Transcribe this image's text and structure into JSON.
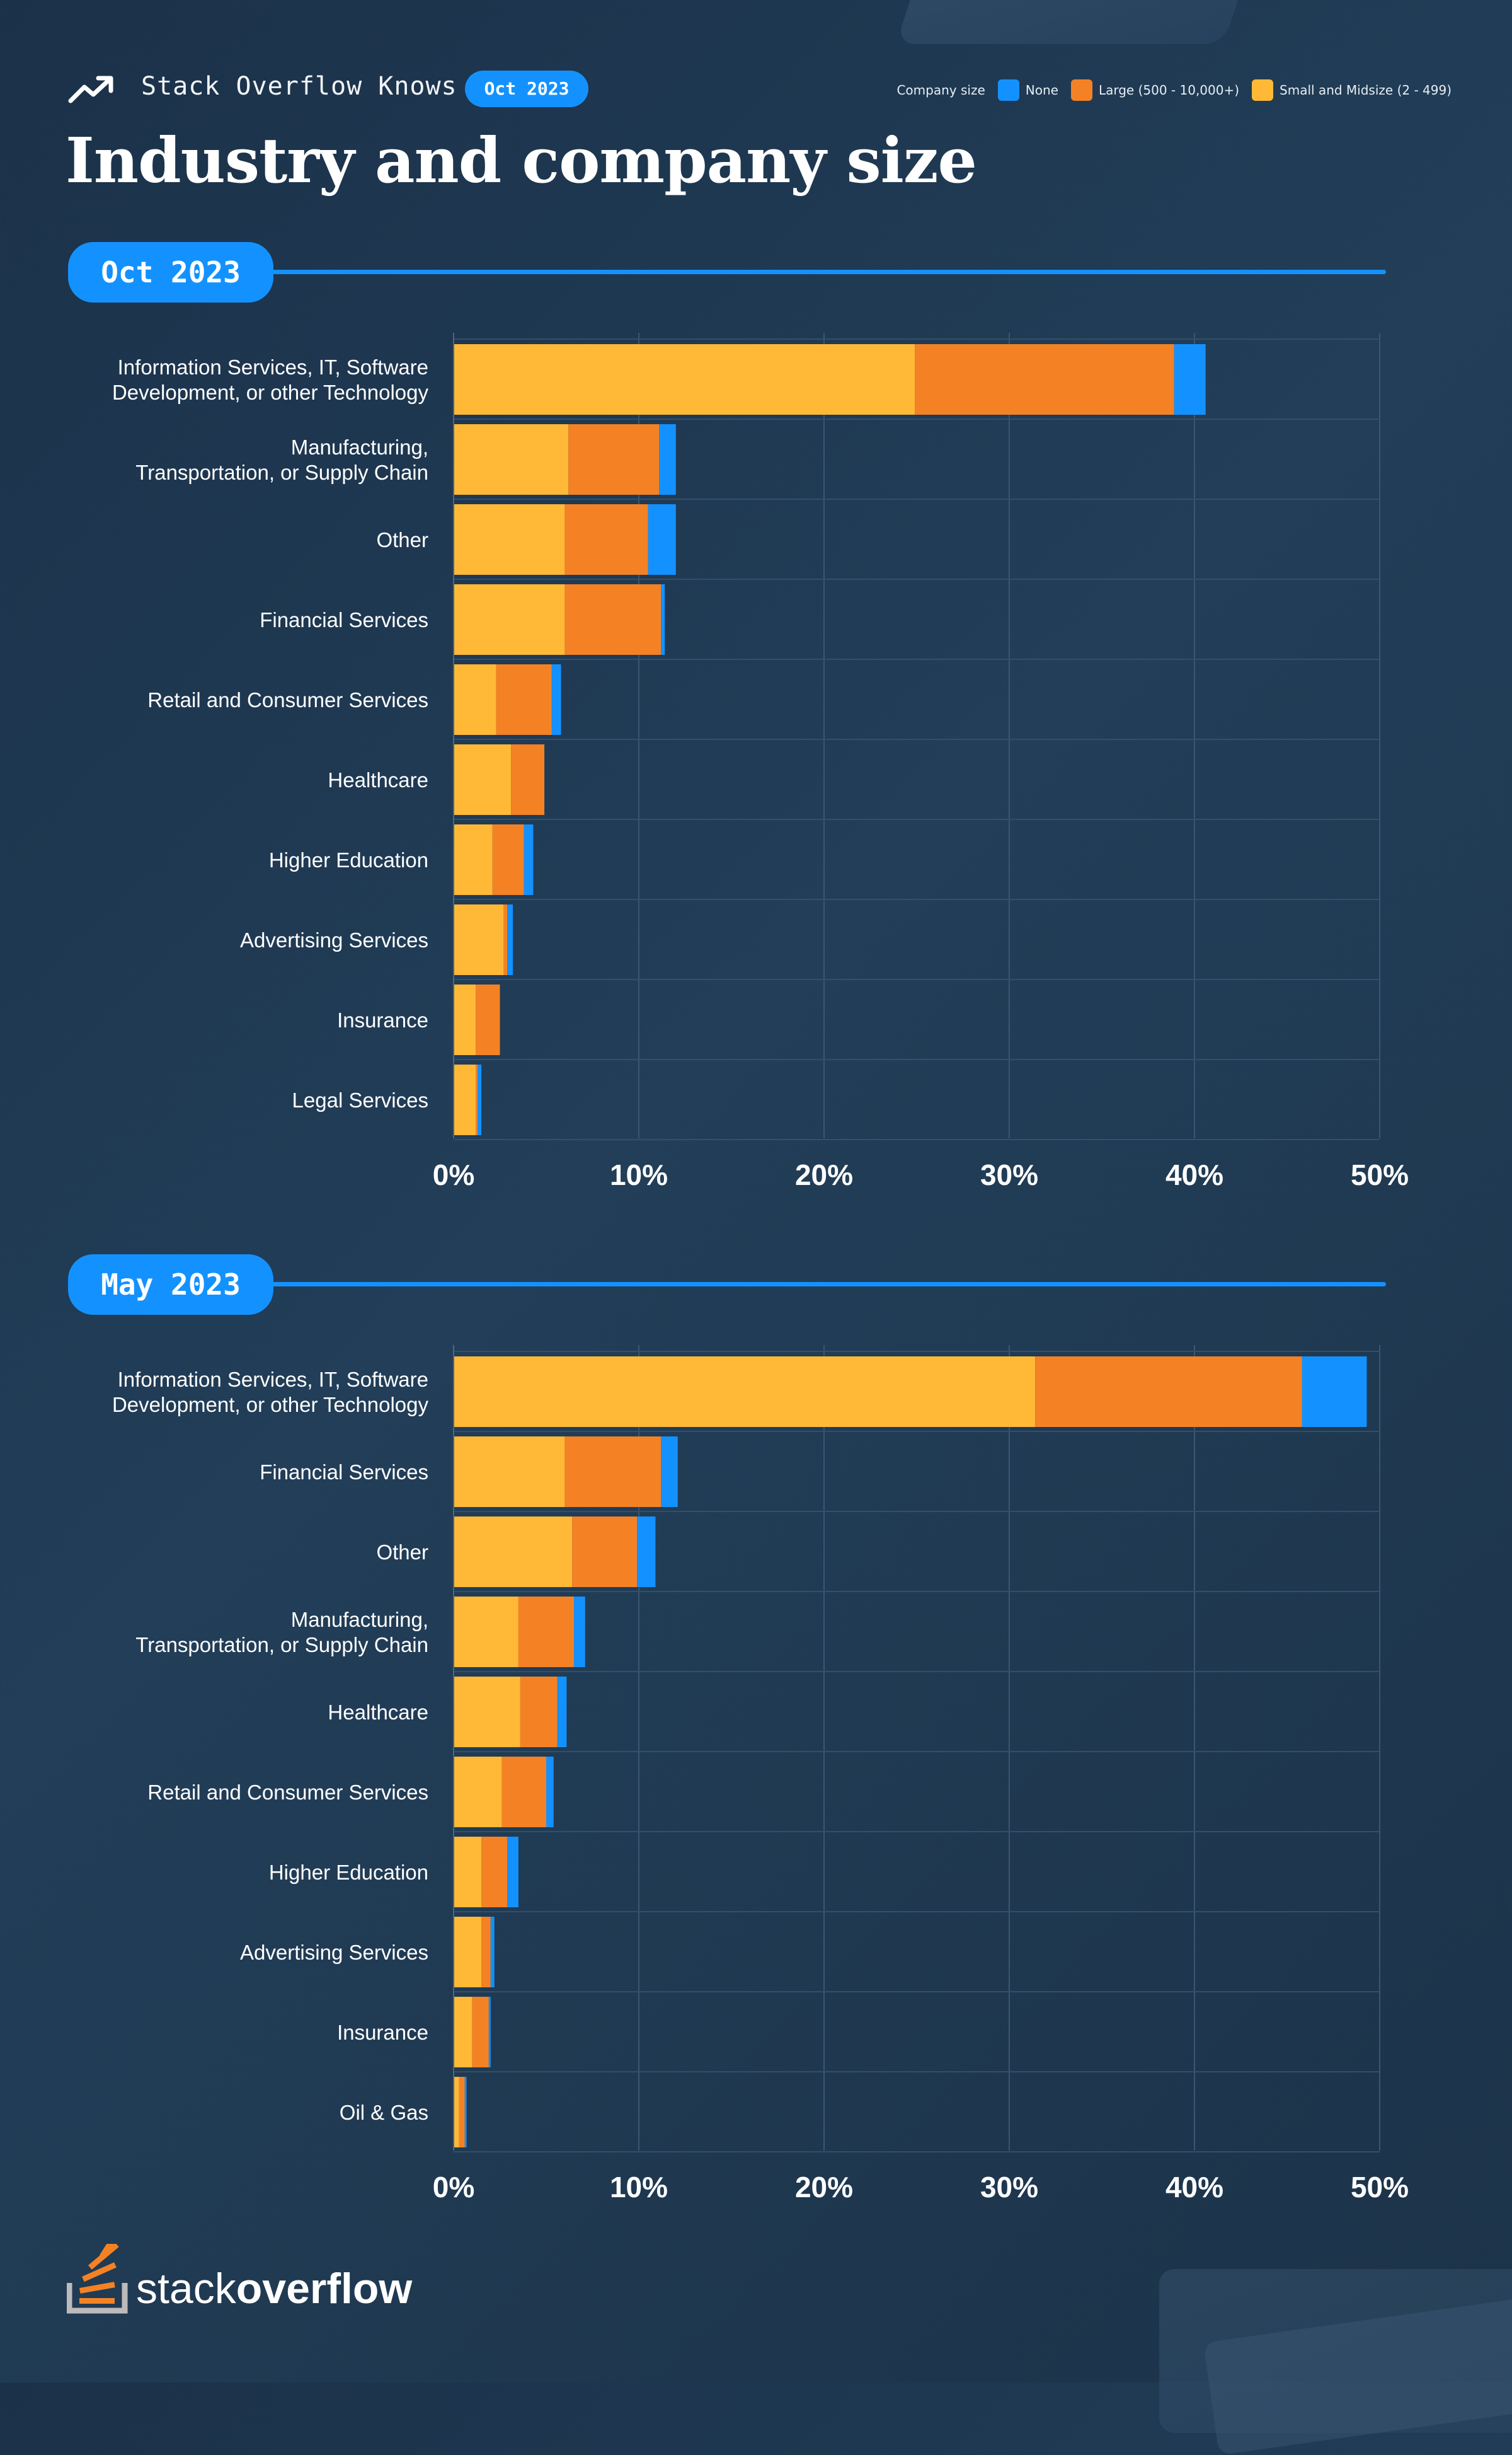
{
  "header": {
    "brand": "Stack Overflow Knows",
    "badge": "Oct 2023",
    "title": "Industry and company size"
  },
  "legend": {
    "title": "Company size",
    "items": [
      {
        "label": "None",
        "color": "#1392ff"
      },
      {
        "label": "Large (500 - 10,000+)",
        "color": "#f48225"
      },
      {
        "label": "Small and Midsize (2 - 499)",
        "color": "#ffb936"
      }
    ]
  },
  "footer": {
    "logo_light": "stack",
    "logo_bold": "overflow"
  },
  "chart_data": [
    {
      "type": "bar",
      "orientation": "horizontal",
      "stacked": true,
      "title": "Oct 2023",
      "xlim": [
        0,
        50
      ],
      "x_unit": "%",
      "x_ticks": [
        "0%",
        "10%",
        "20%",
        "30%",
        "40%",
        "50%"
      ],
      "grid": true,
      "categories": [
        [
          "Information Services, IT, Software",
          "Development, or other Technology"
        ],
        [
          "Manufacturing,",
          "Transportation, or Supply Chain"
        ],
        [
          "Other"
        ],
        [
          "Financial Services"
        ],
        [
          "Retail and Consumer Services"
        ],
        [
          "Healthcare"
        ],
        [
          "Higher Education"
        ],
        [
          "Advertising Services"
        ],
        [
          "Insurance"
        ],
        [
          "Legal Services"
        ]
      ],
      "series": [
        {
          "name": "Small and Midsize (2 - 499)",
          "color": "#ffb936",
          "values": [
            24.9,
            6.2,
            6.0,
            6.0,
            2.3,
            3.1,
            2.1,
            2.7,
            1.2,
            1.2
          ]
        },
        {
          "name": "Large (500 - 10,000+)",
          "color": "#f48225",
          "values": [
            14.0,
            4.9,
            4.5,
            5.2,
            3.0,
            1.8,
            1.7,
            0.2,
            1.3,
            0.1
          ]
        },
        {
          "name": "None",
          "color": "#1392ff",
          "values": [
            1.7,
            0.9,
            1.5,
            0.2,
            0.5,
            0.0,
            0.5,
            0.3,
            0.0,
            0.2
          ]
        }
      ]
    },
    {
      "type": "bar",
      "orientation": "horizontal",
      "stacked": true,
      "title": "May 2023",
      "xlim": [
        0,
        50
      ],
      "x_unit": "%",
      "x_ticks": [
        "0%",
        "10%",
        "20%",
        "30%",
        "40%",
        "50%"
      ],
      "grid": true,
      "categories": [
        [
          "Information Services, IT, Software",
          "Development, or other Technology"
        ],
        [
          "Financial Services"
        ],
        [
          "Other"
        ],
        [
          "Manufacturing,",
          "Transportation, or Supply Chain"
        ],
        [
          "Healthcare"
        ],
        [
          "Retail and Consumer Services"
        ],
        [
          "Higher Education"
        ],
        [
          "Advertising Services"
        ],
        [
          "Insurance"
        ],
        [
          "Oil & Gas"
        ]
      ],
      "series": [
        {
          "name": "Small and Midsize (2 - 499)",
          "color": "#ffb936",
          "values": [
            31.4,
            6.0,
            6.4,
            3.5,
            3.6,
            2.6,
            1.5,
            1.5,
            1.0,
            0.3
          ]
        },
        {
          "name": "Large (500 - 10,000+)",
          "color": "#f48225",
          "values": [
            14.4,
            5.2,
            3.5,
            3.0,
            2.0,
            2.4,
            1.4,
            0.5,
            0.9,
            0.3
          ]
        },
        {
          "name": "None",
          "color": "#1392ff",
          "values": [
            3.5,
            0.9,
            1.0,
            0.6,
            0.5,
            0.4,
            0.6,
            0.2,
            0.1,
            0.1
          ]
        }
      ]
    }
  ]
}
